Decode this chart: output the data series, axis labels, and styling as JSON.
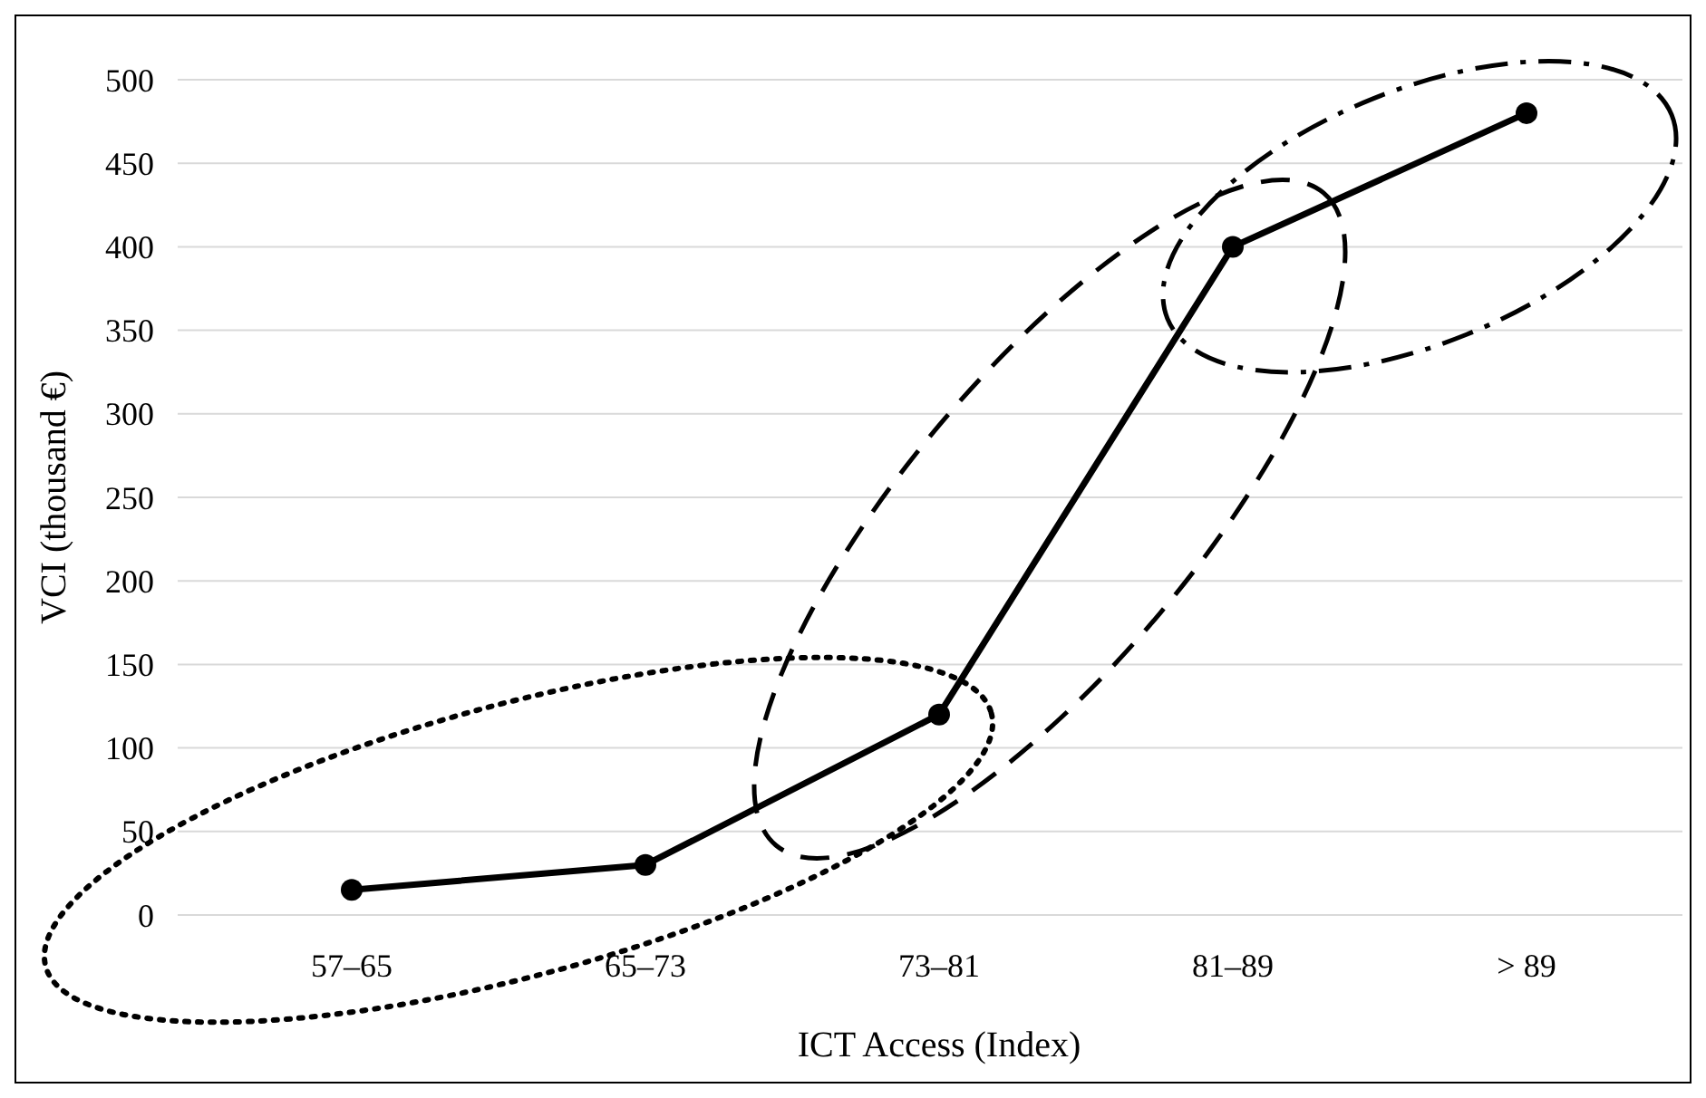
{
  "chart_data": {
    "type": "line",
    "xlabel": "ICT Access (Index)",
    "ylabel": "VCI (thousand €)",
    "categories": [
      "57–65",
      "65–73",
      "73–81",
      "81–89",
      "> 89"
    ],
    "series": [
      {
        "color": "#000000",
        "values": [
          15,
          30,
          120,
          400,
          480
        ]
      }
    ],
    "ylim": [
      0,
      500
    ],
    "yticks": [
      0,
      50,
      100,
      150,
      200,
      250,
      300,
      350,
      400,
      450,
      500
    ],
    "grid": "y",
    "marker": "circle",
    "line_style": "solid"
  }
}
